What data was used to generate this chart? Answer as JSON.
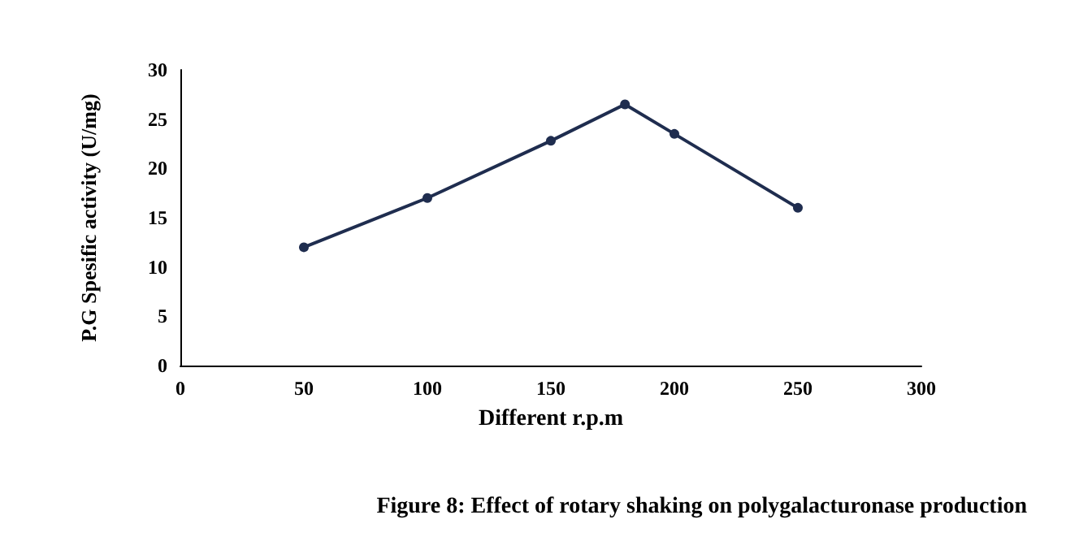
{
  "chart_data": {
    "type": "line",
    "xlabel": "Different r.p.m",
    "ylabel": "P.G Spesific activity (U/mg)",
    "x": [
      50,
      100,
      150,
      180,
      200,
      250
    ],
    "series": [
      {
        "color": "#1f2d4f",
        "values": [
          12,
          17,
          22.8,
          26.5,
          23.5,
          16
        ]
      }
    ],
    "xlim": [
      0,
      300
    ],
    "xticks": [
      0,
      50,
      100,
      150,
      200,
      250,
      300
    ],
    "ylim": [
      0,
      30
    ],
    "yticks": [
      0,
      5,
      10,
      15,
      20,
      25,
      30
    ],
    "grid": false,
    "marker": "circle",
    "line_style": "solid",
    "annotations": [
      "Figure 8: Effect of rotary shaking on polygalacturonase production"
    ]
  }
}
